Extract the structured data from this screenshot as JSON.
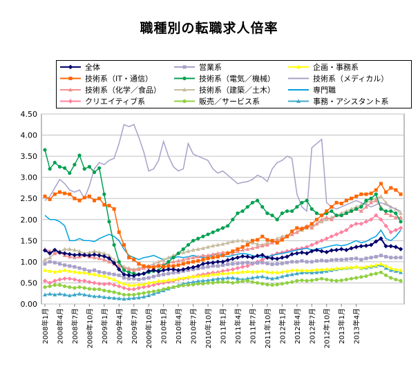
{
  "chart_data": {
    "type": "line",
    "title": "職種別の転職求人倍率",
    "xlabel": "",
    "ylabel": "",
    "ylim": [
      0,
      4.5
    ],
    "yticks": [
      "0.00",
      "0.50",
      "1.00",
      "1.50",
      "2.00",
      "2.50",
      "3.00",
      "3.50",
      "4.00",
      "4.50"
    ],
    "x_labels": [
      "2008年1月",
      "2008年4月",
      "2008年7月",
      "2008年10月",
      "2009年1月",
      "2009年4月",
      "2009年7月",
      "2009年10月",
      "2010年1月",
      "2010年4月",
      "2010年7月",
      "2010年10月",
      "2011年1月",
      "2011年4月",
      "2011年7月",
      "2011年10月",
      "2012年1月",
      "2012年4月",
      "2012年7月",
      "2012年10月",
      "2013年1月",
      "2013年4月"
    ],
    "grid": true,
    "legend_position": "top",
    "series": [
      {
        "name": "全体",
        "color": "#00006b",
        "marker": "diamond",
        "values": [
          1.27,
          1.2,
          1.28,
          1.22,
          1.2,
          1.18,
          1.16,
          1.17,
          1.16,
          1.15,
          1.17,
          1.15,
          1.13,
          1.08,
          0.97,
          0.82,
          0.7,
          0.68,
          0.67,
          0.7,
          0.72,
          0.78,
          0.8,
          0.77,
          0.8,
          0.82,
          0.82,
          0.8,
          0.82,
          0.85,
          0.87,
          0.9,
          0.95,
          0.97,
          0.98,
          1.0,
          1.0,
          1.04,
          1.07,
          1.1,
          1.13,
          1.12,
          1.1,
          1.14,
          1.16,
          1.1,
          1.08,
          1.07,
          1.1,
          1.12,
          1.18,
          1.2,
          1.22,
          1.2,
          1.25,
          1.28,
          1.25,
          1.23,
          1.27,
          1.28,
          1.3,
          1.28,
          1.32,
          1.35,
          1.37,
          1.38,
          1.4,
          1.48,
          1.55,
          1.37,
          1.37,
          1.35,
          1.3
        ]
      },
      {
        "name": "営業系",
        "color": "#a8a0c8",
        "marker": "square",
        "values": [
          0.95,
          1.0,
          0.98,
          0.95,
          0.92,
          0.9,
          0.88,
          0.85,
          0.82,
          0.78,
          0.8,
          0.76,
          0.74,
          0.72,
          0.7,
          0.68,
          0.62,
          0.6,
          0.6,
          0.58,
          0.6,
          0.62,
          0.65,
          0.68,
          0.7,
          0.72,
          0.74,
          0.75,
          0.78,
          0.8,
          0.82,
          0.84,
          0.86,
          0.88,
          0.9,
          0.9,
          0.92,
          0.94,
          0.95,
          0.96,
          0.97,
          0.98,
          0.96,
          0.97,
          0.98,
          0.96,
          0.94,
          0.95,
          0.96,
          0.98,
          1.0,
          1.0,
          1.02,
          1.0,
          1.0,
          1.02,
          1.03,
          1.02,
          1.04,
          1.05,
          1.05,
          1.06,
          1.07,
          1.08,
          1.05,
          1.08,
          1.1,
          1.12,
          1.15,
          1.12,
          1.1,
          1.1,
          1.1
        ]
      },
      {
        "name": "企画・事務系",
        "color": "#ffff00",
        "marker": "triangle",
        "values": [
          0.8,
          0.78,
          0.76,
          0.78,
          0.8,
          0.78,
          0.76,
          0.75,
          0.74,
          0.72,
          0.7,
          0.68,
          0.66,
          0.62,
          0.58,
          0.52,
          0.48,
          0.45,
          0.45,
          0.46,
          0.47,
          0.5,
          0.52,
          0.54,
          0.55,
          0.57,
          0.58,
          0.6,
          0.62,
          0.64,
          0.65,
          0.66,
          0.67,
          0.68,
          0.7,
          0.71,
          0.72,
          0.73,
          0.74,
          0.75,
          0.76,
          0.77,
          0.76,
          0.77,
          0.78,
          0.76,
          0.75,
          0.75,
          0.76,
          0.78,
          0.8,
          0.8,
          0.8,
          0.79,
          0.8,
          0.81,
          0.82,
          0.82,
          0.83,
          0.84,
          0.85,
          0.86,
          0.87,
          0.88,
          0.86,
          0.88,
          0.9,
          0.92,
          0.95,
          0.9,
          0.85,
          0.82,
          0.8
        ]
      },
      {
        "name": "技術系（IT・通信）",
        "color": "#ff6600",
        "marker": "square",
        "values": [
          2.55,
          2.48,
          2.6,
          2.65,
          2.62,
          2.6,
          2.5,
          2.45,
          2.52,
          2.55,
          2.45,
          2.5,
          2.35,
          2.33,
          2.25,
          1.7,
          1.4,
          1.1,
          1.05,
          0.95,
          0.9,
          0.88,
          0.86,
          0.9,
          0.88,
          0.9,
          0.9,
          0.92,
          0.95,
          0.98,
          1.0,
          1.02,
          1.05,
          1.08,
          1.1,
          1.12,
          1.15,
          1.2,
          1.25,
          1.3,
          1.35,
          1.4,
          1.5,
          1.52,
          1.6,
          1.52,
          1.5,
          1.45,
          1.52,
          1.6,
          1.72,
          1.8,
          1.78,
          1.82,
          1.9,
          2.0,
          2.1,
          2.2,
          2.3,
          2.4,
          2.38,
          2.45,
          2.5,
          2.55,
          2.6,
          2.6,
          2.62,
          2.7,
          2.85,
          2.65,
          2.75,
          2.7,
          2.6
        ]
      },
      {
        "name": "技術系（電気／機械）",
        "color": "#00a050",
        "marker": "circle",
        "values": [
          3.65,
          3.2,
          3.35,
          3.25,
          3.22,
          3.1,
          3.3,
          3.52,
          3.2,
          3.25,
          3.12,
          3.22,
          2.6,
          1.95,
          1.4,
          1.0,
          0.8,
          0.75,
          0.72,
          0.7,
          0.72,
          0.75,
          0.78,
          0.8,
          0.9,
          1.0,
          1.1,
          1.2,
          1.3,
          1.4,
          1.5,
          1.55,
          1.6,
          1.65,
          1.7,
          1.75,
          1.8,
          1.85,
          2.0,
          2.15,
          2.2,
          2.3,
          2.4,
          2.45,
          2.3,
          2.15,
          2.1,
          2.0,
          2.15,
          2.2,
          2.2,
          2.3,
          2.4,
          2.45,
          2.25,
          2.15,
          2.1,
          2.15,
          2.2,
          2.1,
          2.1,
          2.15,
          2.2,
          2.25,
          2.3,
          2.45,
          2.5,
          2.6,
          2.25,
          2.2,
          2.2,
          2.15,
          1.95
        ]
      },
      {
        "name": "技術系（メディカル）",
        "color": "#a8a0c8",
        "marker": "none",
        "values": [
          2.45,
          2.55,
          2.75,
          2.95,
          2.85,
          2.7,
          2.65,
          2.7,
          2.5,
          2.8,
          3.2,
          3.35,
          3.3,
          3.4,
          3.45,
          3.8,
          4.25,
          4.2,
          4.25,
          3.95,
          3.6,
          3.15,
          3.2,
          3.4,
          3.85,
          3.5,
          3.25,
          3.15,
          3.2,
          3.8,
          3.55,
          3.5,
          3.45,
          3.4,
          3.2,
          3.1,
          3.15,
          3.05,
          2.95,
          2.85,
          2.88,
          2.9,
          2.95,
          3.05,
          3.0,
          2.9,
          3.2,
          3.35,
          3.4,
          3.5,
          3.45,
          2.6,
          2.3,
          2.2,
          3.7,
          3.8,
          3.9,
          2.4,
          2.3,
          2.25,
          2.3,
          2.35,
          2.4,
          2.45,
          2.4,
          2.35,
          2.3,
          2.35,
          2.4,
          2.35,
          2.3,
          2.25,
          2.2
        ]
      },
      {
        "name": "技術系（化学／食品）",
        "color": "#f09090",
        "marker": "triangle",
        "values": [
          1.3,
          1.25,
          1.2,
          1.22,
          1.15,
          1.12,
          1.1,
          1.12,
          1.15,
          1.12,
          1.1,
          1.08,
          1.05,
          1.0,
          0.95,
          0.9,
          0.85,
          0.82,
          0.8,
          0.82,
          0.85,
          0.88,
          0.9,
          0.92,
          0.95,
          0.98,
          1.0,
          1.02,
          1.05,
          1.08,
          1.1,
          1.12,
          1.15,
          1.15,
          1.18,
          1.2,
          1.22,
          1.22,
          1.2,
          1.25,
          1.28,
          1.3,
          1.32,
          1.35,
          1.38,
          1.4,
          1.45,
          1.5,
          1.55,
          1.6,
          1.65,
          1.7,
          1.8,
          1.85,
          1.8,
          1.9,
          2.0,
          2.05,
          2.0,
          2.1,
          2.1,
          2.15,
          2.2,
          2.25,
          2.2,
          2.3,
          2.4,
          2.45,
          2.3,
          2.15,
          2.1,
          2.05,
          2.05
        ]
      },
      {
        "name": "技術系（建築／土木）",
        "color": "#c8bca0",
        "marker": "triangle",
        "values": [
          1.05,
          1.1,
          1.2,
          1.25,
          1.3,
          1.3,
          1.28,
          1.25,
          1.2,
          1.22,
          1.25,
          1.22,
          1.2,
          1.15,
          1.05,
          0.95,
          0.88,
          0.85,
          0.82,
          0.85,
          0.88,
          0.9,
          0.95,
          1.0,
          1.05,
          1.1,
          1.15,
          1.2,
          1.22,
          1.25,
          1.28,
          1.3,
          1.32,
          1.35,
          1.38,
          1.4,
          1.42,
          1.45,
          1.48,
          1.5,
          1.5,
          1.48,
          1.45,
          1.42,
          1.4,
          1.45,
          1.5,
          1.55,
          1.6,
          1.62,
          1.65,
          1.7,
          1.75,
          1.8,
          1.85,
          1.9,
          1.95,
          2.0,
          2.05,
          2.1,
          2.15,
          2.2,
          2.25,
          2.3,
          2.35,
          2.4,
          2.45,
          2.5,
          2.55,
          2.4,
          2.3,
          2.25,
          2.15
        ]
      },
      {
        "name": "専門職",
        "color": "#00a0e0",
        "marker": "none",
        "values": [
          2.1,
          2.0,
          2.0,
          1.95,
          1.85,
          1.5,
          1.5,
          1.55,
          1.5,
          1.5,
          1.48,
          1.55,
          1.6,
          1.65,
          1.6,
          1.5,
          1.3,
          1.15,
          1.1,
          1.05,
          1.1,
          1.12,
          1.15,
          1.1,
          1.05,
          1.08,
          1.1,
          1.12,
          1.1,
          1.12,
          1.15,
          1.12,
          1.1,
          1.12,
          1.15,
          1.18,
          1.15,
          1.12,
          1.15,
          1.18,
          1.2,
          1.18,
          1.15,
          1.12,
          1.1,
          1.12,
          1.15,
          1.18,
          1.2,
          1.22,
          1.25,
          1.28,
          1.3,
          1.32,
          1.28,
          1.3,
          1.32,
          1.35,
          1.38,
          1.4,
          1.38,
          1.4,
          1.45,
          1.5,
          1.45,
          1.48,
          1.55,
          1.6,
          1.75,
          1.55,
          1.5,
          1.6,
          1.75
        ]
      },
      {
        "name": "クリエイティブ系",
        "color": "#ff80a0",
        "marker": "diamond",
        "values": [
          0.55,
          0.5,
          0.55,
          0.58,
          0.6,
          0.6,
          0.58,
          0.55,
          0.55,
          0.52,
          0.5,
          0.48,
          0.47,
          0.48,
          0.45,
          0.42,
          0.38,
          0.35,
          0.35,
          0.38,
          0.4,
          0.42,
          0.45,
          0.48,
          0.5,
          0.52,
          0.55,
          0.58,
          0.6,
          0.62,
          0.65,
          0.68,
          0.7,
          0.72,
          0.74,
          0.75,
          0.78,
          0.8,
          0.82,
          0.85,
          0.88,
          0.9,
          0.95,
          1.0,
          1.05,
          1.1,
          1.15,
          1.2,
          1.22,
          1.25,
          1.28,
          1.3,
          1.32,
          1.35,
          1.4,
          1.45,
          1.5,
          1.55,
          1.6,
          1.65,
          1.7,
          1.75,
          1.85,
          1.9,
          1.9,
          1.95,
          2.0,
          2.1,
          2.0,
          1.85,
          1.7,
          1.75,
          1.8
        ]
      },
      {
        "name": "販売／サービス系",
        "color": "#90d040",
        "marker": "circle",
        "values": [
          0.4,
          0.42,
          0.45,
          0.45,
          0.42,
          0.4,
          0.38,
          0.4,
          0.38,
          0.36,
          0.35,
          0.35,
          0.32,
          0.3,
          0.28,
          0.25,
          0.22,
          0.22,
          0.22,
          0.24,
          0.26,
          0.28,
          0.3,
          0.32,
          0.35,
          0.38,
          0.4,
          0.42,
          0.44,
          0.45,
          0.46,
          0.48,
          0.48,
          0.5,
          0.5,
          0.52,
          0.52,
          0.52,
          0.5,
          0.52,
          0.54,
          0.55,
          0.52,
          0.5,
          0.48,
          0.46,
          0.45,
          0.46,
          0.48,
          0.5,
          0.52,
          0.55,
          0.56,
          0.55,
          0.56,
          0.58,
          0.6,
          0.58,
          0.56,
          0.55,
          0.56,
          0.58,
          0.6,
          0.62,
          0.64,
          0.66,
          0.7,
          0.72,
          0.75,
          0.68,
          0.62,
          0.58,
          0.55
        ]
      },
      {
        "name": "事務・アシスタント系",
        "color": "#40a8c8",
        "marker": "triangle",
        "values": [
          0.22,
          0.24,
          0.22,
          0.24,
          0.22,
          0.2,
          0.22,
          0.24,
          0.22,
          0.2,
          0.18,
          0.18,
          0.16,
          0.15,
          0.14,
          0.13,
          0.12,
          0.13,
          0.14,
          0.15,
          0.17,
          0.2,
          0.24,
          0.28,
          0.32,
          0.36,
          0.4,
          0.44,
          0.48,
          0.5,
          0.52,
          0.54,
          0.55,
          0.56,
          0.58,
          0.6,
          0.6,
          0.62,
          0.62,
          0.6,
          0.58,
          0.6,
          0.62,
          0.64,
          0.65,
          0.62,
          0.6,
          0.62,
          0.65,
          0.68,
          0.7,
          0.72,
          0.74,
          0.75,
          0.74,
          0.75,
          0.76,
          0.78,
          0.8,
          0.82,
          0.84,
          0.85,
          0.86,
          0.88,
          0.85,
          0.86,
          0.88,
          0.9,
          0.92,
          0.85,
          0.8,
          0.78,
          0.75
        ]
      }
    ]
  }
}
